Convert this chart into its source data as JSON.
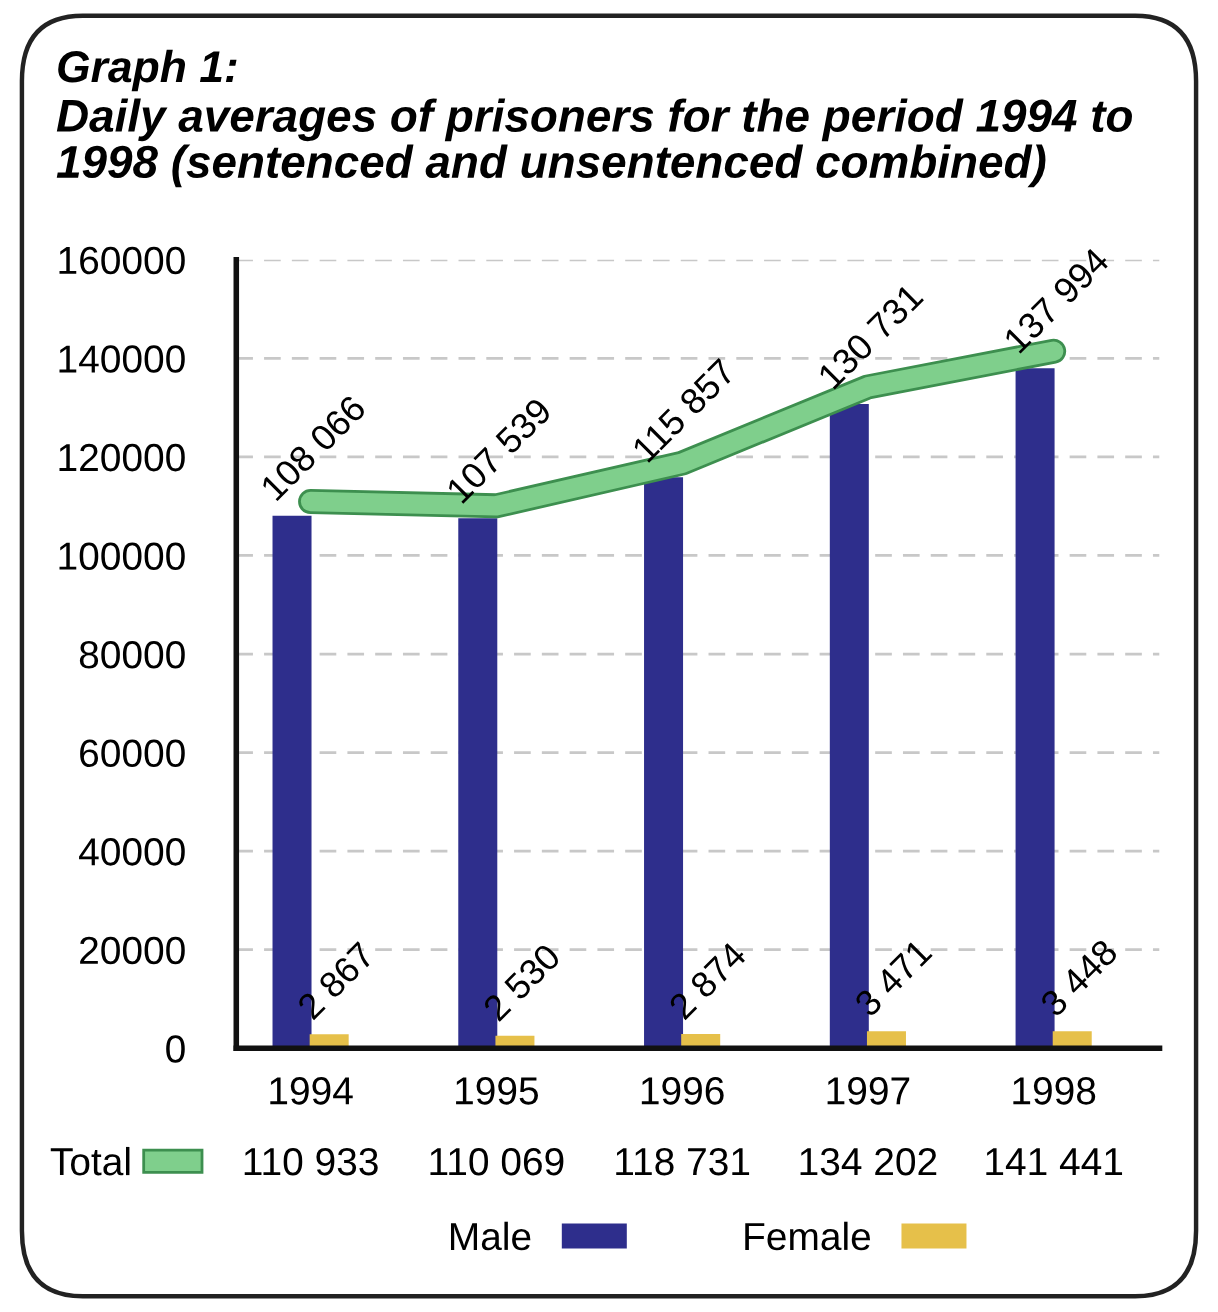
{
  "chart_data": {
    "type": "bar",
    "title": "Graph 1:",
    "subtitle": "Daily averages of prisoners for the period 1994 to 1998 (sentenced and unsentenced combined)",
    "categories": [
      "1994",
      "1995",
      "1996",
      "1997",
      "1998"
    ],
    "series": [
      {
        "name": "Male",
        "color": "#2e2e8c",
        "values": [
          108066,
          107539,
          115857,
          130731,
          137994
        ],
        "value_labels": [
          "108 066",
          "107 539",
          "115 857",
          "130 731",
          "137 994"
        ]
      },
      {
        "name": "Female",
        "color": "#e6c04a",
        "values": [
          2867,
          2530,
          2874,
          3471,
          3448
        ],
        "value_labels": [
          "2 867",
          "2 530",
          "2 874",
          "3 471",
          "3 448"
        ]
      },
      {
        "name": "Total",
        "type": "line",
        "color": "#7fcf8c",
        "values": [
          110933,
          110069,
          118731,
          134202,
          141441
        ],
        "value_labels": [
          "110 933",
          "110 069",
          "118 731",
          "134 202",
          "141 441"
        ]
      }
    ],
    "ylim": [
      0,
      160000
    ],
    "yticks": [
      0,
      20000,
      40000,
      60000,
      80000,
      100000,
      120000,
      140000,
      160000
    ],
    "grid": "y",
    "legend": "bottom"
  }
}
